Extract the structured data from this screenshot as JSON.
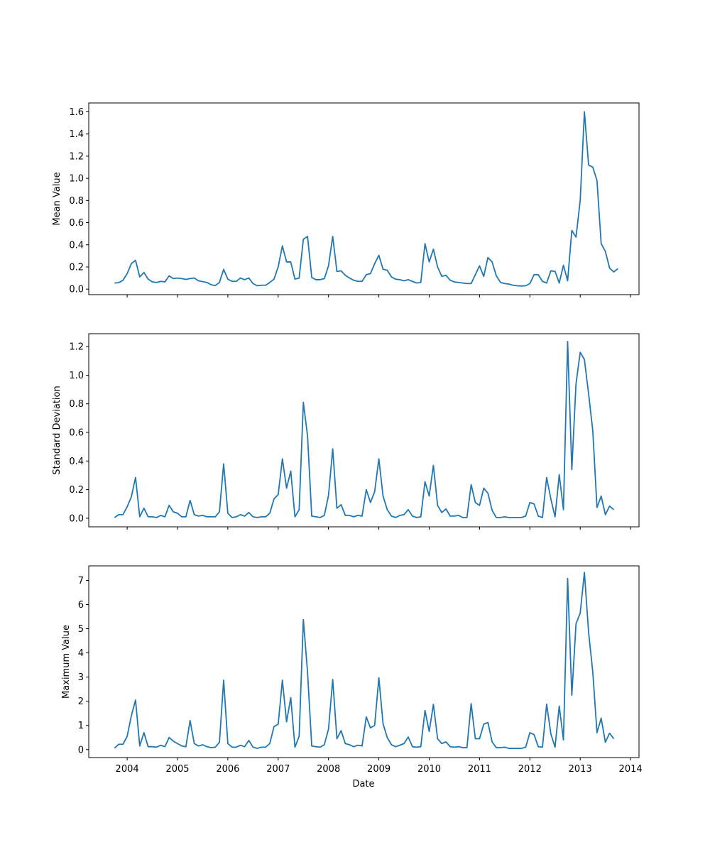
{
  "chart_data": [
    {
      "type": "line",
      "ylabel": "Mean Value",
      "xlabel": "",
      "ylim": [
        -0.05,
        1.68
      ],
      "yticks": [
        0.0,
        0.2,
        0.4,
        0.6,
        0.8,
        1.0,
        1.2,
        1.4,
        1.6
      ],
      "ytick_labels": [
        "0.0",
        "0.2",
        "0.4",
        "0.6",
        "0.8",
        "1.0",
        "1.2",
        "1.4",
        "1.6"
      ],
      "color": "#1f77b4",
      "series": [
        {
          "values": [
            0.055,
            0.058,
            0.08,
            0.14,
            0.23,
            0.26,
            0.11,
            0.15,
            0.09,
            0.065,
            0.06,
            0.07,
            0.065,
            0.12,
            0.095,
            0.1,
            0.095,
            0.088,
            0.095,
            0.1,
            0.075,
            0.068,
            0.06,
            0.04,
            0.032,
            0.06,
            0.178,
            0.09,
            0.07,
            0.07,
            0.1,
            0.085,
            0.1,
            0.05,
            0.03,
            0.035,
            0.035,
            0.06,
            0.09,
            0.2,
            0.39,
            0.245,
            0.245,
            0.09,
            0.1,
            0.45,
            0.475,
            0.105,
            0.085,
            0.085,
            0.095,
            0.21,
            0.475,
            0.16,
            0.165,
            0.125,
            0.1,
            0.08,
            0.07,
            0.07,
            0.13,
            0.14,
            0.23,
            0.305,
            0.18,
            0.17,
            0.11,
            0.09,
            0.085,
            0.075,
            0.085,
            0.07,
            0.055,
            0.06,
            0.41,
            0.245,
            0.36,
            0.2,
            0.115,
            0.125,
            0.08,
            0.065,
            0.06,
            0.055,
            0.05,
            0.05,
            0.13,
            0.21,
            0.115,
            0.285,
            0.245,
            0.12,
            0.06,
            0.05,
            0.045,
            0.035,
            0.03,
            0.028,
            0.03,
            0.05,
            0.13,
            0.13,
            0.07,
            0.055,
            0.165,
            0.16,
            0.055,
            0.215,
            0.075,
            0.53,
            0.47,
            0.8,
            1.6,
            1.12,
            1.1,
            0.98,
            0.41,
            0.34,
            0.19,
            0.155,
            0.185
          ]
        }
      ]
    },
    {
      "type": "line",
      "ylabel": "Standard Deviation",
      "xlabel": "",
      "ylim": [
        -0.06,
        1.29
      ],
      "yticks": [
        0.0,
        0.2,
        0.4,
        0.6,
        0.8,
        1.0,
        1.2
      ],
      "ytick_labels": [
        "0.0",
        "0.2",
        "0.4",
        "0.6",
        "0.8",
        "1.0",
        "1.2"
      ],
      "color": "#1f77b4",
      "series": [
        {
          "values": [
            0.005,
            0.025,
            0.025,
            0.08,
            0.15,
            0.285,
            0.01,
            0.07,
            0.01,
            0.01,
            0.005,
            0.02,
            0.01,
            0.09,
            0.045,
            0.035,
            0.01,
            0.01,
            0.125,
            0.025,
            0.015,
            0.02,
            0.01,
            0.01,
            0.01,
            0.045,
            0.38,
            0.035,
            0.005,
            0.01,
            0.025,
            0.015,
            0.04,
            0.01,
            0.005,
            0.01,
            0.01,
            0.035,
            0.135,
            0.165,
            0.415,
            0.21,
            0.33,
            0.01,
            0.06,
            0.81,
            0.575,
            0.015,
            0.01,
            0.005,
            0.02,
            0.16,
            0.485,
            0.07,
            0.095,
            0.02,
            0.02,
            0.01,
            0.02,
            0.015,
            0.2,
            0.11,
            0.185,
            0.415,
            0.155,
            0.06,
            0.015,
            0.005,
            0.02,
            0.025,
            0.06,
            0.015,
            0.005,
            0.01,
            0.255,
            0.155,
            0.37,
            0.09,
            0.04,
            0.065,
            0.015,
            0.015,
            0.02,
            0.005,
            0.005,
            0.235,
            0.11,
            0.09,
            0.21,
            0.175,
            0.055,
            0.005,
            0.005,
            0.01,
            0.005,
            0.005,
            0.005,
            0.005,
            0.015,
            0.11,
            0.1,
            0.015,
            0.005,
            0.285,
            0.135,
            0.01,
            0.305,
            0.06,
            1.235,
            0.34,
            0.94,
            1.16,
            1.11,
            0.87,
            0.61,
            0.075,
            0.155,
            0.025,
            0.085,
            0.06
          ]
        }
      ]
    },
    {
      "type": "line",
      "ylabel": "Maximum Value",
      "xlabel": "Date",
      "ylim": [
        -0.33,
        7.6
      ],
      "yticks": [
        0,
        1,
        2,
        3,
        4,
        5,
        6,
        7
      ],
      "ytick_labels": [
        "0",
        "1",
        "2",
        "3",
        "4",
        "5",
        "6",
        "7"
      ],
      "x_tick_labels": [
        "2004",
        "2005",
        "2006",
        "2007",
        "2008",
        "2009",
        "2010",
        "2011",
        "2012",
        "2013",
        "2014"
      ],
      "x_tick_dates": [
        "2004-01-01",
        "2005-01-01",
        "2006-01-01",
        "2007-01-01",
        "2008-01-01",
        "2009-01-01",
        "2010-01-01",
        "2011-01-01",
        "2012-01-01",
        "2013-01-01",
        "2014-01-01"
      ],
      "color": "#1f77b4",
      "series": [
        {
          "values": [
            0.06,
            0.22,
            0.22,
            0.55,
            1.4,
            2.05,
            0.15,
            0.7,
            0.12,
            0.12,
            0.1,
            0.18,
            0.12,
            0.5,
            0.35,
            0.25,
            0.15,
            0.12,
            1.2,
            0.25,
            0.15,
            0.2,
            0.12,
            0.08,
            0.1,
            0.3,
            2.87,
            0.25,
            0.1,
            0.1,
            0.18,
            0.12,
            0.38,
            0.1,
            0.05,
            0.1,
            0.1,
            0.25,
            0.95,
            1.05,
            2.87,
            1.15,
            2.15,
            0.1,
            0.55,
            5.38,
            3.2,
            0.15,
            0.12,
            0.1,
            0.2,
            0.85,
            2.9,
            0.45,
            0.78,
            0.25,
            0.2,
            0.12,
            0.18,
            0.15,
            1.35,
            0.9,
            1.0,
            2.97,
            1.07,
            0.5,
            0.2,
            0.12,
            0.18,
            0.25,
            0.52,
            0.12,
            0.1,
            0.12,
            1.62,
            0.75,
            1.87,
            0.45,
            0.25,
            0.32,
            0.12,
            0.1,
            0.12,
            0.08,
            0.08,
            1.9,
            0.45,
            0.45,
            1.05,
            1.12,
            0.32,
            0.08,
            0.08,
            0.1,
            0.05,
            0.05,
            0.05,
            0.05,
            0.1,
            0.7,
            0.62,
            0.12,
            0.1,
            1.88,
            0.65,
            0.1,
            1.8,
            0.4,
            7.08,
            2.25,
            5.2,
            5.65,
            7.33,
            4.85,
            3.2,
            0.7,
            1.3,
            0.3,
            0.68,
            0.45
          ]
        }
      ]
    }
  ],
  "x_series": {
    "start": "2003-10",
    "end": "2013-09",
    "frequency": "monthly",
    "tick_labels": [
      "2004",
      "2005",
      "2006",
      "2007",
      "2008",
      "2009",
      "2010",
      "2011",
      "2012",
      "2013",
      "2014"
    ]
  }
}
